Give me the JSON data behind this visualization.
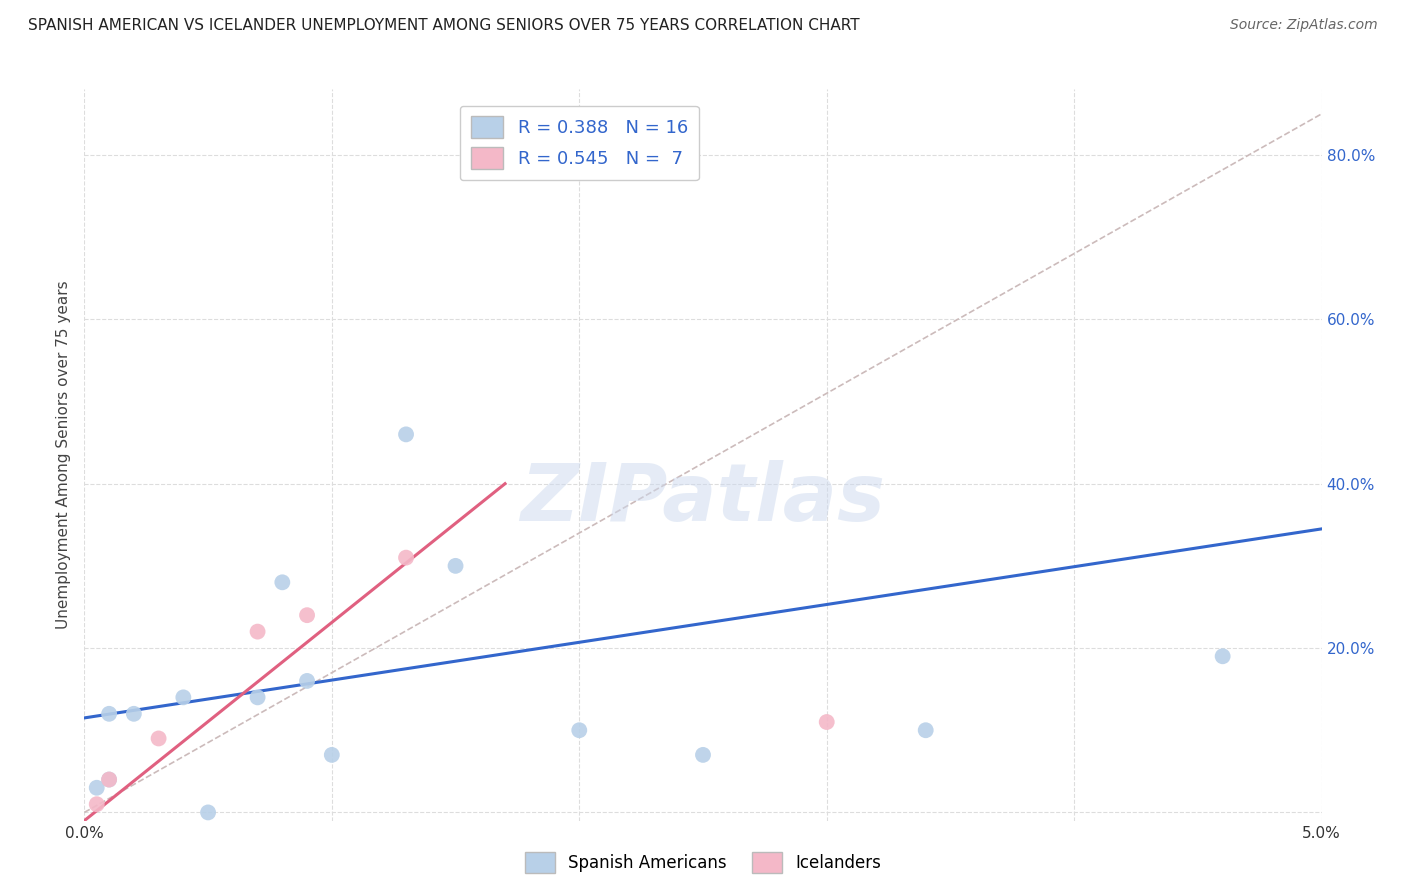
{
  "title": "SPANISH AMERICAN VS ICELANDER UNEMPLOYMENT AMONG SENIORS OVER 75 YEARS CORRELATION CHART",
  "source": "Source: ZipAtlas.com",
  "ylabel": "Unemployment Among Seniors over 75 years",
  "xlim": [
    0.0,
    0.05
  ],
  "ylim": [
    -0.01,
    0.88
  ],
  "yticks": [
    0.0,
    0.2,
    0.4,
    0.6,
    0.8
  ],
  "ytick_labels_right": [
    "",
    "20.0%",
    "40.0%",
    "60.0%",
    "80.0%"
  ],
  "xticks": [
    0.0,
    0.01,
    0.02,
    0.03,
    0.04,
    0.05
  ],
  "xtick_labels": [
    "0.0%",
    "",
    "",
    "",
    "",
    "5.0%"
  ],
  "blue_R": 0.388,
  "blue_N": 16,
  "pink_R": 0.545,
  "pink_N": 7,
  "blue_scatter_x": [
    0.0005,
    0.001,
    0.001,
    0.002,
    0.004,
    0.005,
    0.007,
    0.008,
    0.009,
    0.01,
    0.013,
    0.015,
    0.02,
    0.025,
    0.034,
    0.046
  ],
  "blue_scatter_y": [
    0.03,
    0.04,
    0.12,
    0.12,
    0.14,
    0.0,
    0.14,
    0.28,
    0.16,
    0.07,
    0.46,
    0.3,
    0.1,
    0.07,
    0.1,
    0.19
  ],
  "pink_scatter_x": [
    0.0005,
    0.001,
    0.003,
    0.007,
    0.009,
    0.013,
    0.03
  ],
  "pink_scatter_y": [
    0.01,
    0.04,
    0.09,
    0.22,
    0.24,
    0.31,
    0.11
  ],
  "blue_line_x": [
    0.0,
    0.05
  ],
  "blue_line_y": [
    0.115,
    0.345
  ],
  "pink_line_x": [
    0.0,
    0.017
  ],
  "pink_line_y": [
    -0.01,
    0.4
  ],
  "diag_line_x": [
    0.0,
    0.05
  ],
  "diag_line_y": [
    0.0,
    0.85
  ],
  "blue_color": "#b8d0e8",
  "blue_line_color": "#3366cc",
  "pink_color": "#f4b8c8",
  "pink_line_color": "#e06080",
  "diag_color": "#ccbbbb",
  "watermark_text": "ZIPatlas",
  "background_color": "#ffffff",
  "grid_color": "#dddddd",
  "grid_linestyle": "--"
}
